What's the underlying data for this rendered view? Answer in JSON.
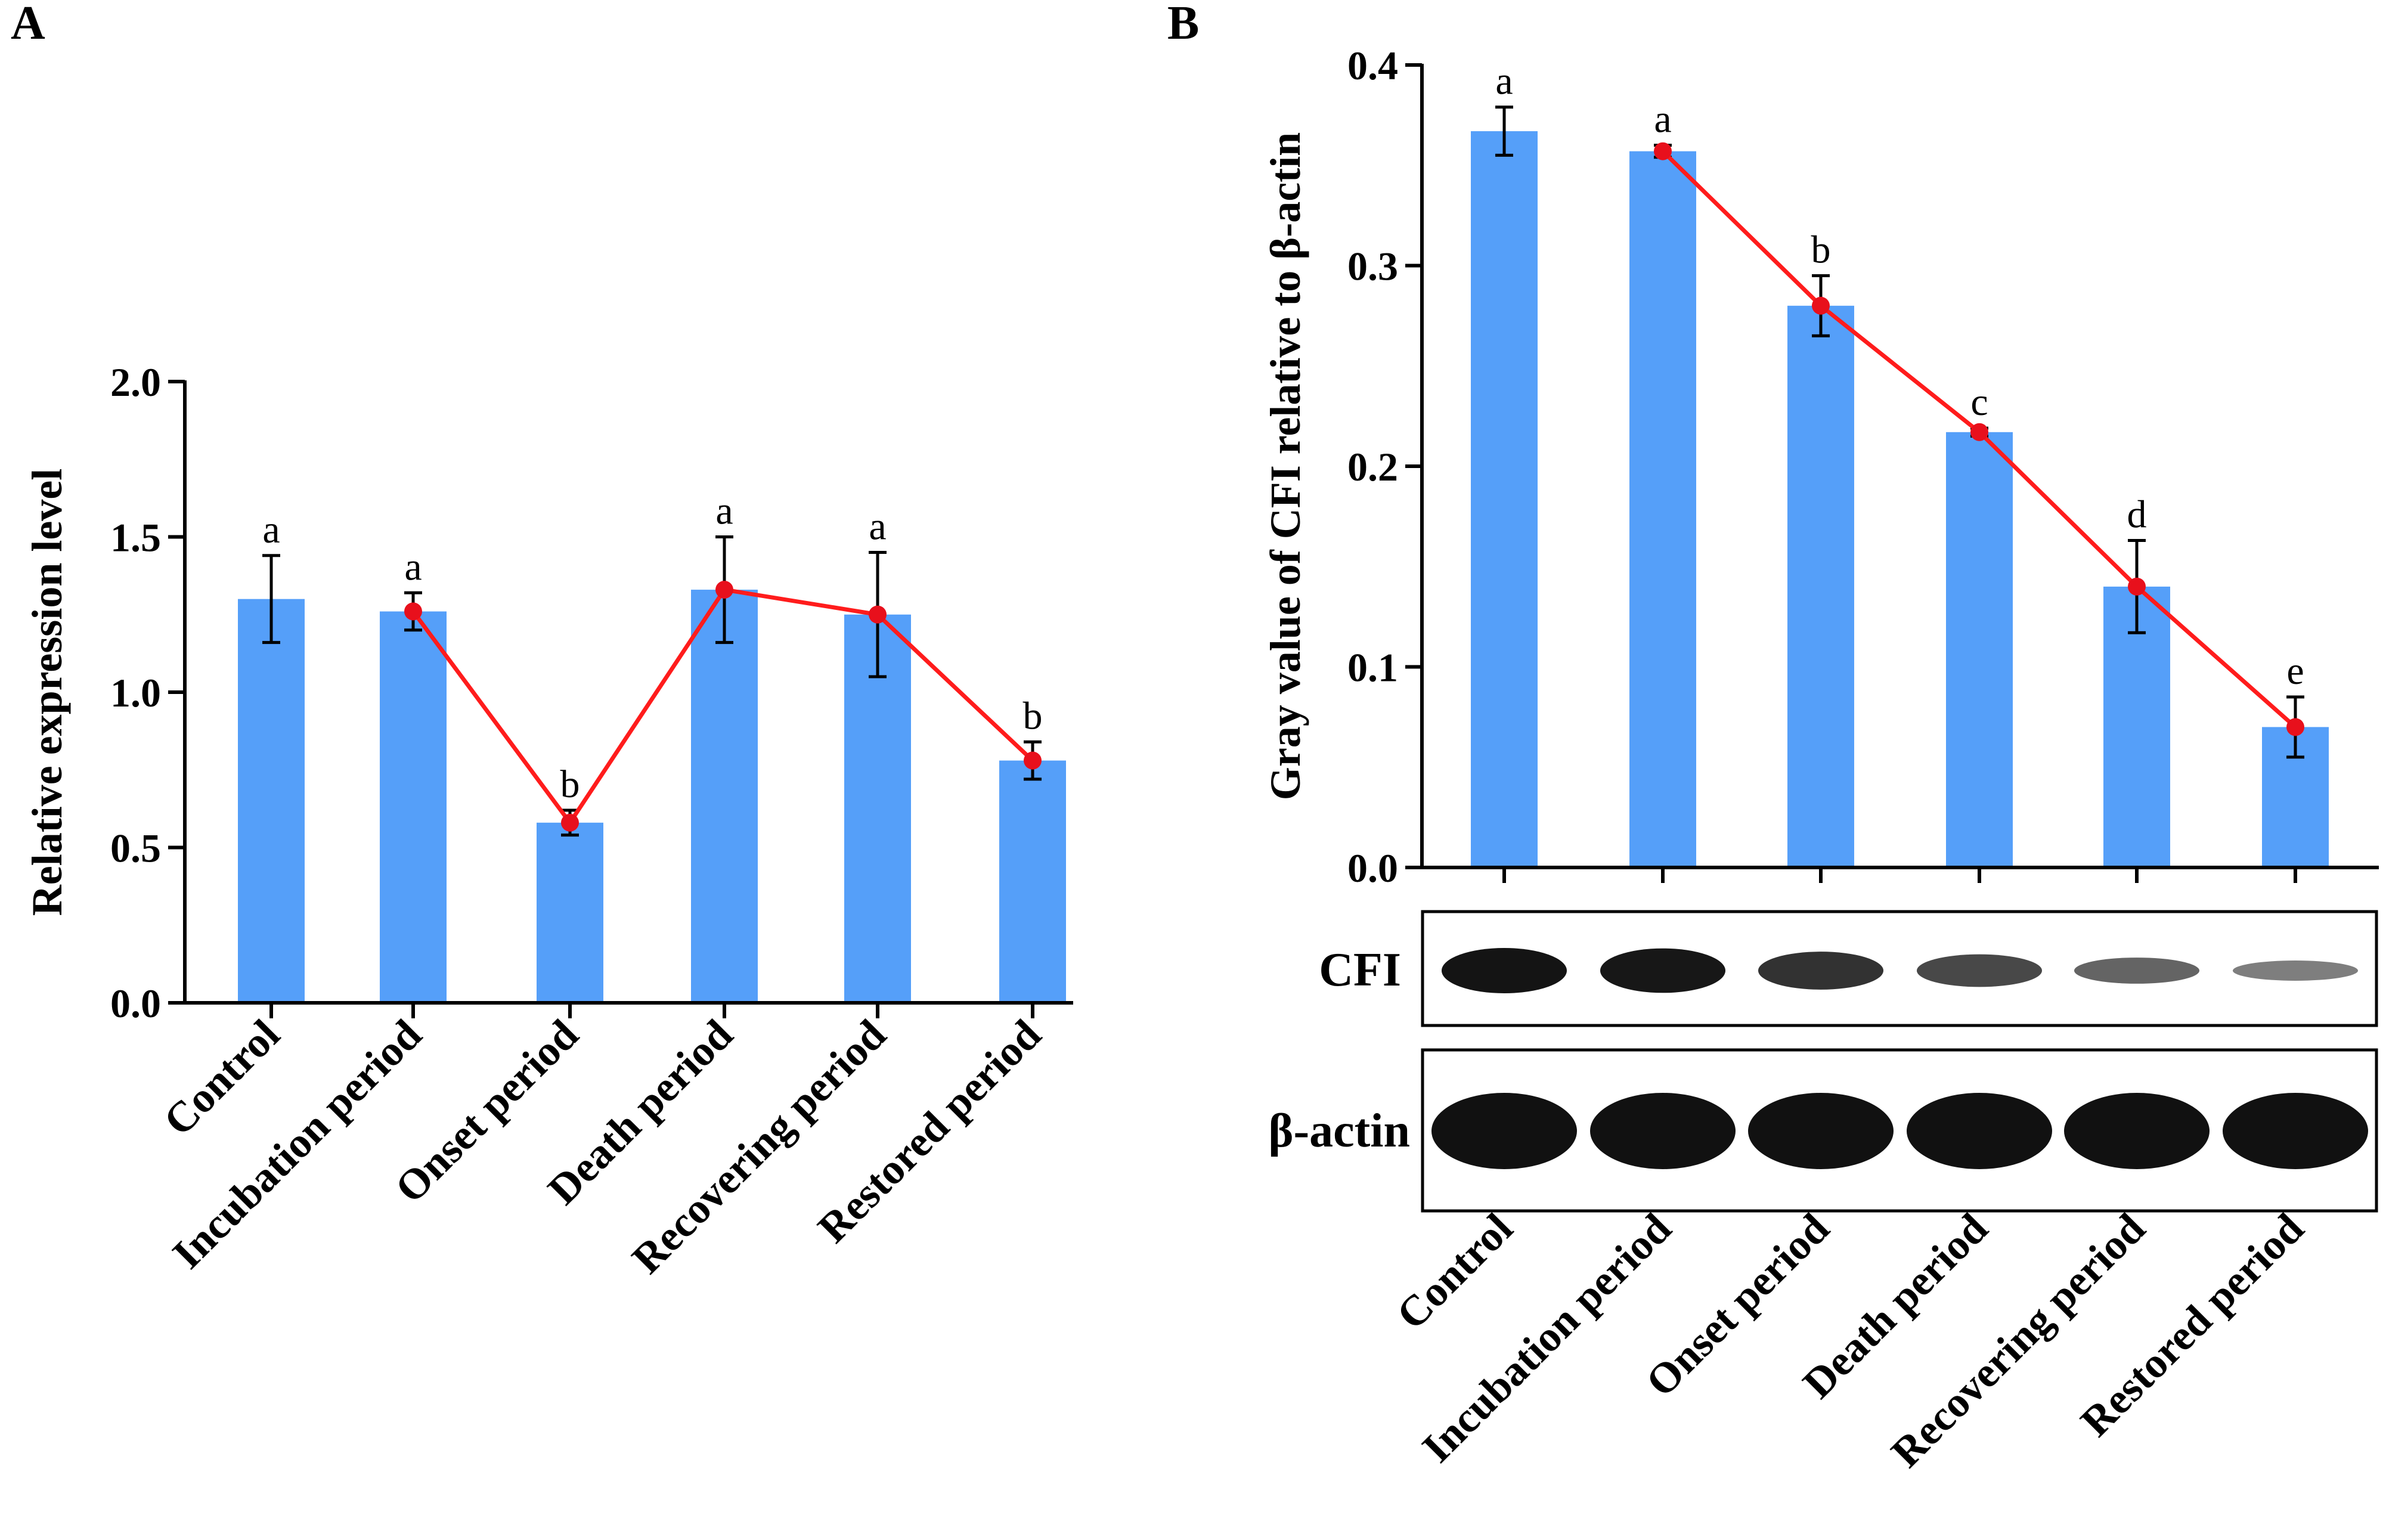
{
  "panels": {
    "a": {
      "label": "A"
    },
    "b": {
      "label": "B"
    }
  },
  "colors": {
    "bar": "#559FF9",
    "line": "#FF1C1C",
    "marker": "#E8101C",
    "axis": "#000000"
  },
  "blot": {
    "cfi_label": "CFI",
    "actin_label": "β-actin"
  },
  "chart_data": [
    {
      "id": "panel-a",
      "type": "bar",
      "overlay": "line",
      "title": "",
      "xlabel": "",
      "ylabel": "Relative expression level",
      "ylim": [
        0,
        2.0
      ],
      "yticks": [
        "0.0",
        "0.5",
        "1.0",
        "1.5",
        "2.0"
      ],
      "ytick_values": [
        0,
        0.5,
        1.0,
        1.5,
        2.0
      ],
      "categories": [
        "Control",
        "Incubation period",
        "Onset period",
        "Death period",
        "Recovering period",
        "Restored period"
      ],
      "values": [
        1.3,
        1.26,
        0.58,
        1.33,
        1.25,
        0.78
      ],
      "errors": [
        0.14,
        0.06,
        0.04,
        0.17,
        0.2,
        0.06
      ],
      "significance": [
        "a",
        "a",
        "b",
        "a",
        "a",
        "b"
      ],
      "line_values": [
        null,
        1.26,
        0.58,
        1.33,
        1.25,
        0.78
      ]
    },
    {
      "id": "panel-b",
      "type": "bar",
      "overlay": "line",
      "title": "",
      "xlabel": "",
      "ylabel": "Gray value of CFI relative to β-actin",
      "ylim": [
        0,
        0.4
      ],
      "yticks": [
        "0.0",
        "0.1",
        "0.2",
        "0.3",
        "0.4"
      ],
      "ytick_values": [
        0,
        0.1,
        0.2,
        0.3,
        0.4
      ],
      "categories": [
        "Control",
        "Incubation period",
        "Onset period",
        "Death period",
        "Recovering period",
        "Restored period"
      ],
      "values": [
        0.367,
        0.357,
        0.28,
        0.217,
        0.14,
        0.07
      ],
      "errors": [
        0.012,
        0.003,
        0.015,
        0.002,
        0.023,
        0.015
      ],
      "significance": [
        "a",
        "a",
        "b",
        "c",
        "d",
        "e"
      ],
      "line_values": [
        null,
        0.357,
        0.28,
        0.217,
        0.14,
        0.07
      ]
    }
  ]
}
